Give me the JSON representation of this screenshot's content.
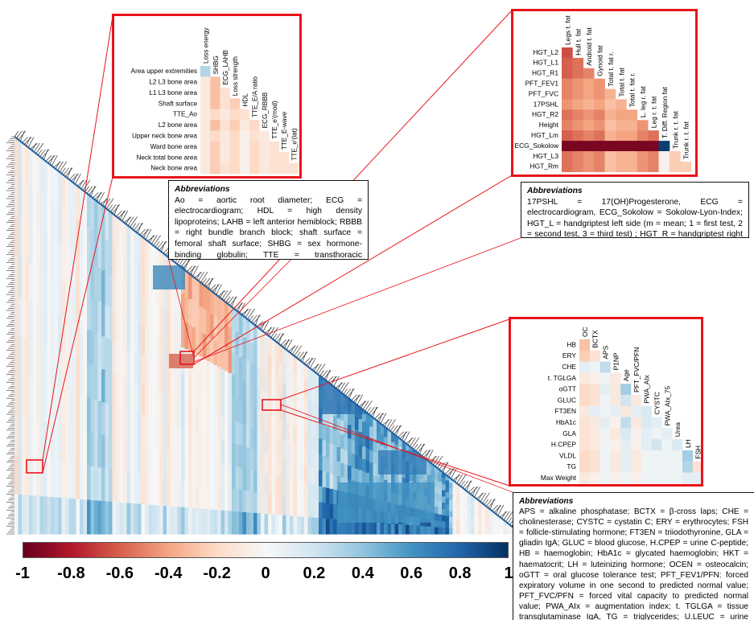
{
  "chart_data": {
    "type": "heatmap",
    "colorbar": {
      "ticks": [
        "-1",
        "-0.8",
        "-0.6",
        "-0.4",
        "-0.2",
        "0",
        "0.2",
        "0.4",
        "0.6",
        "0.8",
        "1"
      ],
      "range": [
        -1,
        1
      ],
      "colors": [
        "#67001f",
        "#b2182b",
        "#d6604d",
        "#f4a582",
        "#fddbc7",
        "#f7f7f7",
        "#d1e5f0",
        "#92c5de",
        "#4393c3",
        "#2166ac",
        "#053061"
      ]
    },
    "zooms": [
      {
        "id": "zoom1",
        "row_labels": [
          "Area  upper extremities",
          "L2 L3 bone area",
          "L1 L3 bone area",
          "Shaft surface",
          "TTE_Ao",
          "L2 bone area",
          "Upper neck bone area",
          "Ward bone area",
          "Neck total bone area",
          "Neck bone area"
        ],
        "col_labels": [
          "Loss energy",
          "SHBG",
          "ECG_LAHB",
          "Loss strength",
          "HDL",
          "TTE_E/A ratio",
          "ECG_RBBB",
          "TTE_e'(mod)",
          "TTE_E-wave",
          "TTE_e'(lat)"
        ],
        "values": [
          [
            0.3
          ],
          [
            -0.1,
            -0.3
          ],
          [
            -0.1,
            -0.3,
            -0.15
          ],
          [
            -0.1,
            -0.3,
            -0.15,
            -0.25
          ],
          [
            -0.1,
            -0.2,
            -0.1,
            -0.2,
            -0.15
          ],
          [
            -0.1,
            -0.3,
            -0.15,
            -0.25,
            -0.1,
            -0.2
          ],
          [
            -0.1,
            -0.2,
            -0.1,
            -0.2,
            -0.05,
            -0.15,
            -0.1
          ],
          [
            -0.1,
            -0.25,
            -0.1,
            -0.2,
            -0.05,
            -0.2,
            -0.1,
            -0.15
          ],
          [
            -0.1,
            -0.25,
            -0.1,
            -0.2,
            -0.05,
            -0.2,
            -0.1,
            -0.15,
            -0.15
          ],
          [
            -0.1,
            -0.25,
            -0.15,
            -0.2,
            -0.05,
            -0.2,
            -0.1,
            -0.15,
            -0.15,
            -0.15
          ]
        ]
      },
      {
        "id": "zoom2",
        "row_labels": [
          "HGT_L2",
          "HGT_L1",
          "HGT_R1",
          "PFT_FEV1",
          "PFT_FVC",
          "17PSHL",
          "HGT_R2",
          "Height",
          "HGT_Lm",
          "ECG_Sokolow",
          "HGT_L3",
          "HGT_Rm"
        ],
        "col_labels": [
          "Legs t. fat",
          "Hull t. fat",
          "Android t. fat",
          "Gynoid fat",
          "Total t. fat r.",
          "Total t. fat",
          "Total t. fat r.",
          "L. leg r. fat",
          "Leg r. t. fat",
          "T. Diff. Region fat",
          "Trunk r. t. fat",
          "Trunk r. t. fat"
        ],
        "values": [
          [
            -0.65
          ],
          [
            -0.6,
            -0.55
          ],
          [
            -0.6,
            -0.55,
            -0.5
          ],
          [
            -0.5,
            -0.45,
            -0.4,
            -0.45
          ],
          [
            -0.5,
            -0.45,
            -0.4,
            -0.45,
            -0.35
          ],
          [
            -0.45,
            -0.4,
            -0.35,
            -0.4,
            -0.3,
            -0.35
          ],
          [
            -0.55,
            -0.5,
            -0.45,
            -0.5,
            -0.35,
            -0.4,
            -0.4
          ],
          [
            -0.5,
            -0.45,
            -0.4,
            -0.45,
            -0.3,
            -0.35,
            -0.35,
            -0.45
          ],
          [
            -0.6,
            -0.55,
            -0.5,
            -0.55,
            -0.35,
            -0.4,
            -0.4,
            -0.5,
            -0.55
          ],
          [
            -0.95,
            -0.95,
            -0.95,
            -0.95,
            -0.95,
            -0.95,
            -0.95,
            -0.95,
            -0.95,
            0.95
          ],
          [
            -0.55,
            -0.5,
            -0.45,
            -0.5,
            -0.3,
            -0.35,
            -0.35,
            -0.45,
            -0.5,
            -0.05,
            -0.25
          ],
          [
            -0.55,
            -0.5,
            -0.45,
            -0.5,
            -0.3,
            -0.35,
            -0.35,
            -0.45,
            -0.5,
            -0.05,
            -0.25,
            -0.25
          ]
        ]
      },
      {
        "id": "zoom3",
        "row_labels": [
          "HB",
          "ERY",
          "CHE",
          "t. TGLGA",
          "oGTT",
          "GLUC",
          "FT3EN",
          "HbA1c",
          "GLA",
          "H.CPEP",
          "VLDL",
          "TG",
          "Max Weight"
        ],
        "col_labels": [
          "OC",
          "BCTX",
          "APS",
          "P1NP",
          "Age",
          "PFT_FVC/PFN",
          "PWA_AIx",
          "CYSTC",
          "PWA_AIx_75",
          "Urea",
          "LH",
          "FSH",
          "U.LEUC"
        ],
        "values": [
          [
            -0.3
          ],
          [
            -0.25,
            -0.15
          ],
          [
            0.1,
            0.05,
            0.25
          ],
          [
            -0.1,
            -0.05,
            0.05,
            -0.1
          ],
          [
            -0.2,
            -0.15,
            0.1,
            -0.1,
            0.35
          ],
          [
            -0.2,
            -0.15,
            0.05,
            -0.1,
            0.2,
            -0.1
          ],
          [
            -0.1,
            0.1,
            0.05,
            0.1,
            -0.1,
            0.1,
            0.15
          ],
          [
            -0.15,
            -0.1,
            0.1,
            -0.05,
            0.25,
            -0.1,
            0.15,
            0.1
          ],
          [
            -0.15,
            -0.1,
            0.05,
            -0.1,
            0.15,
            -0.05,
            0.1,
            0.05,
            0.1
          ],
          [
            -0.15,
            -0.1,
            0.05,
            -0.05,
            0.1,
            -0.05,
            0.1,
            0.2,
            0.05,
            0.15
          ],
          [
            -0.2,
            -0.15,
            0.05,
            -0.1,
            0.1,
            -0.1,
            0.05,
            0.05,
            0.05,
            0.05,
            0.35
          ],
          [
            -0.2,
            -0.15,
            0.05,
            -0.1,
            0.1,
            -0.1,
            0.05,
            0.05,
            0.05,
            0.05,
            0.3,
            -0.15
          ],
          [
            -0.1,
            -0.05,
            0.05,
            -0.05,
            0.05,
            -0.05,
            0.05,
            0.05,
            0.05,
            0.05,
            0.1,
            0.1,
            0.05
          ]
        ]
      }
    ]
  },
  "abbreviations": {
    "box1": {
      "title": "Abbreviations",
      "text": "Ao = aortic root diameter; ECG = electrocardiogram; HDL = high density lipoproteins; LAHB = left anterior hemiblock; RBBB = right bundle branch block; shaft surface = femoral shaft surface; SHBG = sex hormone-binding globulin; TTE = transthoracic echocardiography"
    },
    "box2": {
      "title": "Abbreviations",
      "text": "17PSHL = 17(OH)Progesterone, ECG = electrocardiogram, ECG_Sokolow = Sokolow-Lyon-Index; HGT_L = handgriptest left side (m = mean; 1 = first test, 2 = second test, 3 = third test) ; HGT_R = handgriptest right side"
    },
    "box3": {
      "title": "Abbreviations",
      "text": "APS = alkaline phosphatase; BCTX = β-cross laps; CHE = cholinesterase; CYSTC = cystatin C; ERY = erythrocytes; FSH = follicle-stimulating hormone; FT3EN = triiodothyronine, GLA = gliadin IgA; GLUC = blood glucose, H.CPEP = urine C-peptide; HB = haemoglobin; HbA1c = glycated haemoglobin; HKT = haematocrit; LH = luteinizing hormone; OCEN = osteocalcin; oGTT = oral glucose tolerance test; PFT_FEV1/PFN: forced expiratory volume in one second to predicted normal value; PFT_FVC/PFN = forced vital capacity to predicted normal value; PWA_AIx = augmentation index; t. TGLGA = tissue transglutaminase IgA, TG = triglycerides; U.LEUC = urine leucocytes; VLDL = very Low Density Lipoproteins"
    }
  }
}
